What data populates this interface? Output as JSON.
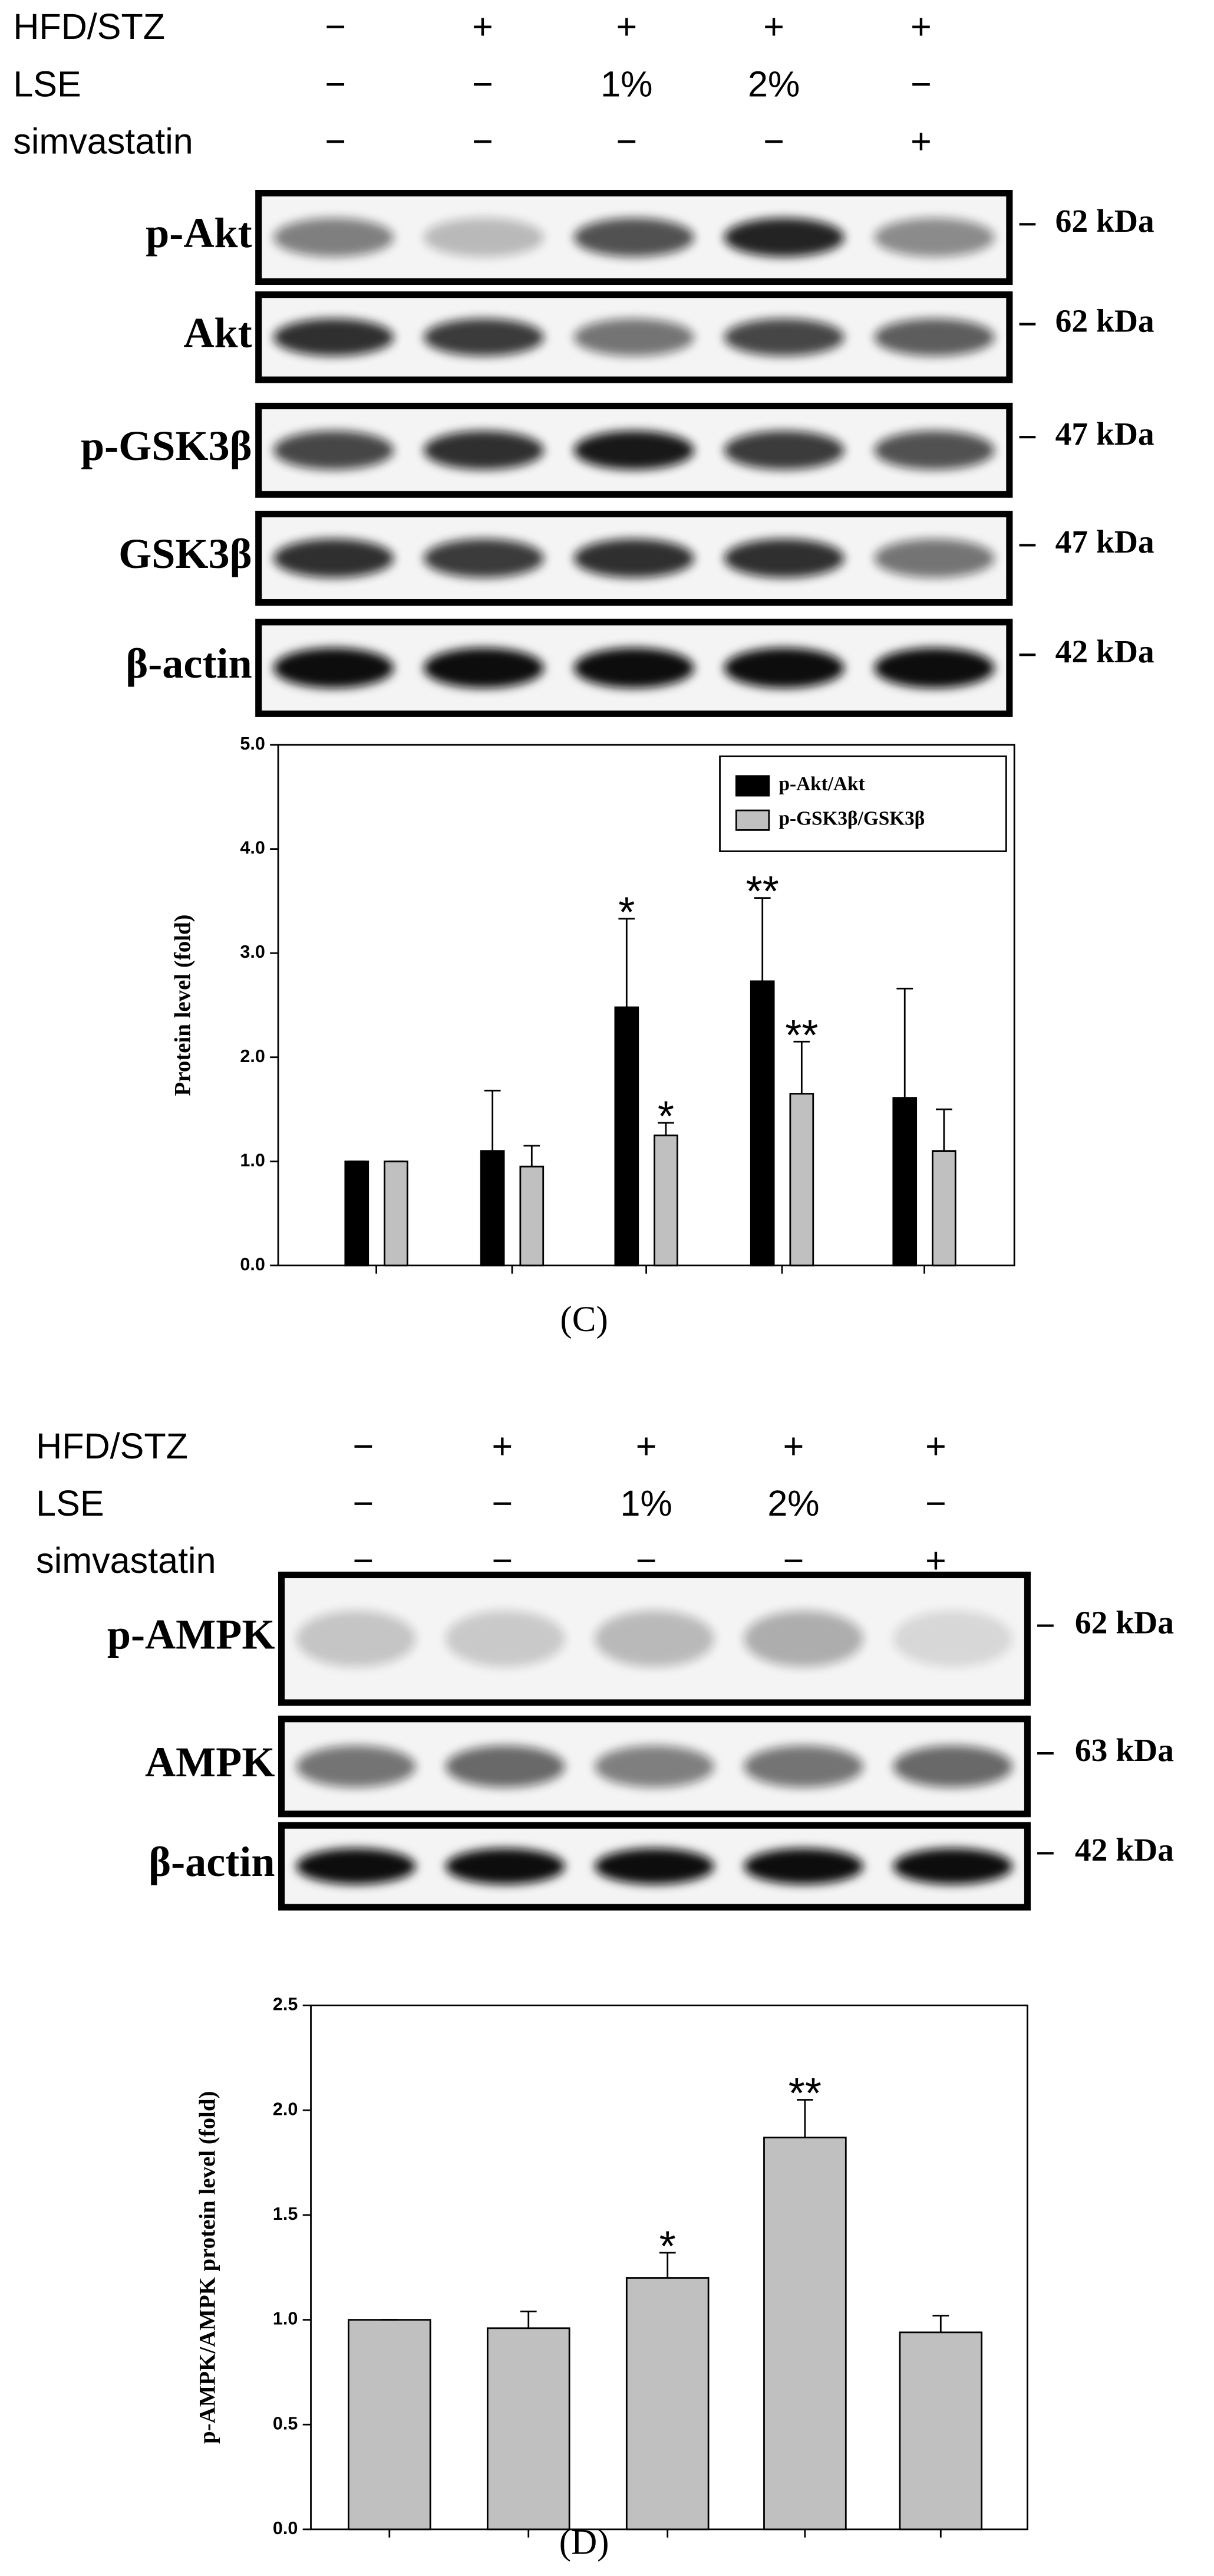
{
  "panels": [
    {
      "conditions": [
        {
          "label": "HFD/STZ",
          "marks": [
            "−",
            "+",
            "+",
            "+",
            "+"
          ]
        },
        {
          "label": "LSE",
          "marks": [
            "−",
            "−",
            "1%",
            "2%",
            "−"
          ]
        },
        {
          "label": "simvastatin",
          "marks": [
            "−",
            "−",
            "−",
            "−",
            "+"
          ]
        }
      ],
      "blots": [
        {
          "label": "p-Akt",
          "size": "62 kDa"
        },
        {
          "label": "Akt",
          "size": "62 kDa"
        },
        {
          "label": "p-GSK3β",
          "size": "47 kDa"
        },
        {
          "label": "GSK3β",
          "size": "47 kDa"
        },
        {
          "label": "β-actin",
          "size": "42 kDa"
        }
      ],
      "caption": "(C)"
    },
    {
      "conditions": [
        {
          "label": "HFD/STZ",
          "marks": [
            "−",
            "+",
            "+",
            "+",
            "+"
          ]
        },
        {
          "label": "LSE",
          "marks": [
            "−",
            "−",
            "1%",
            "2%",
            "−"
          ]
        },
        {
          "label": "simvastatin",
          "marks": [
            "−",
            "−",
            "−",
            "−",
            "+"
          ]
        }
      ],
      "blots": [
        {
          "label": "p-AMPK",
          "size": "62 kDa"
        },
        {
          "label": "AMPK",
          "size": "63 kDa"
        },
        {
          "label": "β-actin",
          "size": "42 kDa"
        }
      ],
      "caption": "(D)"
    }
  ],
  "chart_data": [
    {
      "type": "bar",
      "ylabel": "Protein level (fold)",
      "categories": [
        null,
        null,
        null,
        null,
        null
      ],
      "ylim": [
        0,
        5
      ],
      "yticks": [
        {
          "value": 0,
          "label": "0.0"
        },
        {
          "value": 1,
          "label": "1.0"
        },
        {
          "value": 2,
          "label": "2.0"
        },
        {
          "value": 3,
          "label": "3.0"
        },
        {
          "value": 4,
          "label": "4.0"
        },
        {
          "value": 5,
          "label": "5.0"
        }
      ],
      "grid": false,
      "legend": "top-right",
      "series": [
        {
          "name": "p-Akt/Akt",
          "color": "#000000",
          "values": [
            1.0,
            1.1,
            2.48,
            2.73,
            1.61
          ],
          "errors": [
            0,
            0.58,
            0.85,
            0.8,
            1.05
          ],
          "significance": [
            null,
            null,
            "*",
            "**",
            null
          ]
        },
        {
          "name": "p-GSK3β/GSK3β",
          "color": "#c0c0c0",
          "values": [
            1.0,
            0.95,
            1.25,
            1.65,
            1.1
          ],
          "errors": [
            0,
            0.2,
            0.12,
            0.5,
            0.4
          ],
          "significance": [
            null,
            null,
            "*",
            "**",
            null
          ]
        }
      ]
    },
    {
      "type": "bar",
      "ylabel": "p-AMPK/AMPK protein level (fold)",
      "categories": [
        null,
        null,
        null,
        null,
        null
      ],
      "ylim": [
        0,
        2.5
      ],
      "yticks": [
        {
          "value": 0,
          "label": "0.0"
        },
        {
          "value": 0.5,
          "label": "0.5"
        },
        {
          "value": 1,
          "label": "1.0"
        },
        {
          "value": 1.5,
          "label": "1.5"
        },
        {
          "value": 2,
          "label": "2.0"
        },
        {
          "value": 2.5,
          "label": "2.5"
        }
      ],
      "grid": false,
      "series": [
        {
          "color": "#c0c0c0",
          "values": [
            1.0,
            0.96,
            1.2,
            1.87,
            0.94
          ],
          "errors": [
            0,
            0.08,
            0.12,
            0.18,
            0.08
          ],
          "significance": [
            null,
            null,
            "*",
            "**",
            null
          ]
        }
      ]
    }
  ]
}
